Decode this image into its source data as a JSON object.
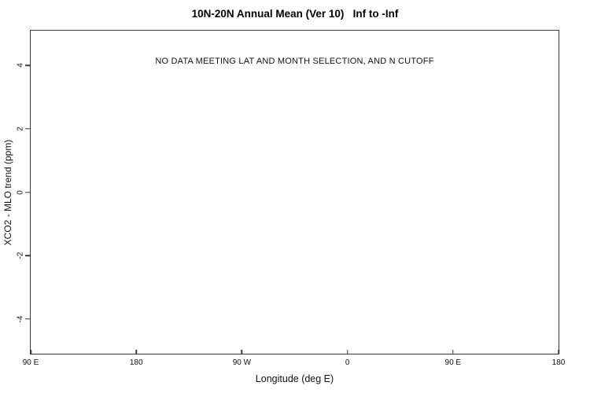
{
  "figure": {
    "title": "10N-20N Annual Mean (Ver 10)   Inf to -Inf",
    "no_data_message": "NO DATA MEETING LAT AND MONTH SELECTION, AND N CUTOFF"
  },
  "chart_data": {
    "type": "scatter",
    "title": "10N-20N Annual Mean (Ver 10)   Inf to -Inf",
    "xlabel": "Longitude (deg E)",
    "ylabel": "XCO2 - MLO trend (ppm)",
    "annotation": "NO DATA MEETING LAT AND MONTH SELECTION, AND N CUTOFF",
    "series": [],
    "x_tick_labels": [
      "90 E",
      "180",
      "90 W",
      "0",
      "90 E",
      "180"
    ],
    "y_ticks": [
      {
        "label": "4",
        "value": 4
      },
      {
        "label": "2",
        "value": 2
      },
      {
        "label": "0",
        "value": 0
      },
      {
        "label": "-2",
        "value": -2
      },
      {
        "label": "-4",
        "value": -4
      }
    ],
    "ylim": [
      -5.1,
      5.1
    ],
    "grid": false,
    "legend": null
  },
  "colors": {
    "background": "#ffffff",
    "axis": "#3a3a3a",
    "text": "#000000"
  }
}
